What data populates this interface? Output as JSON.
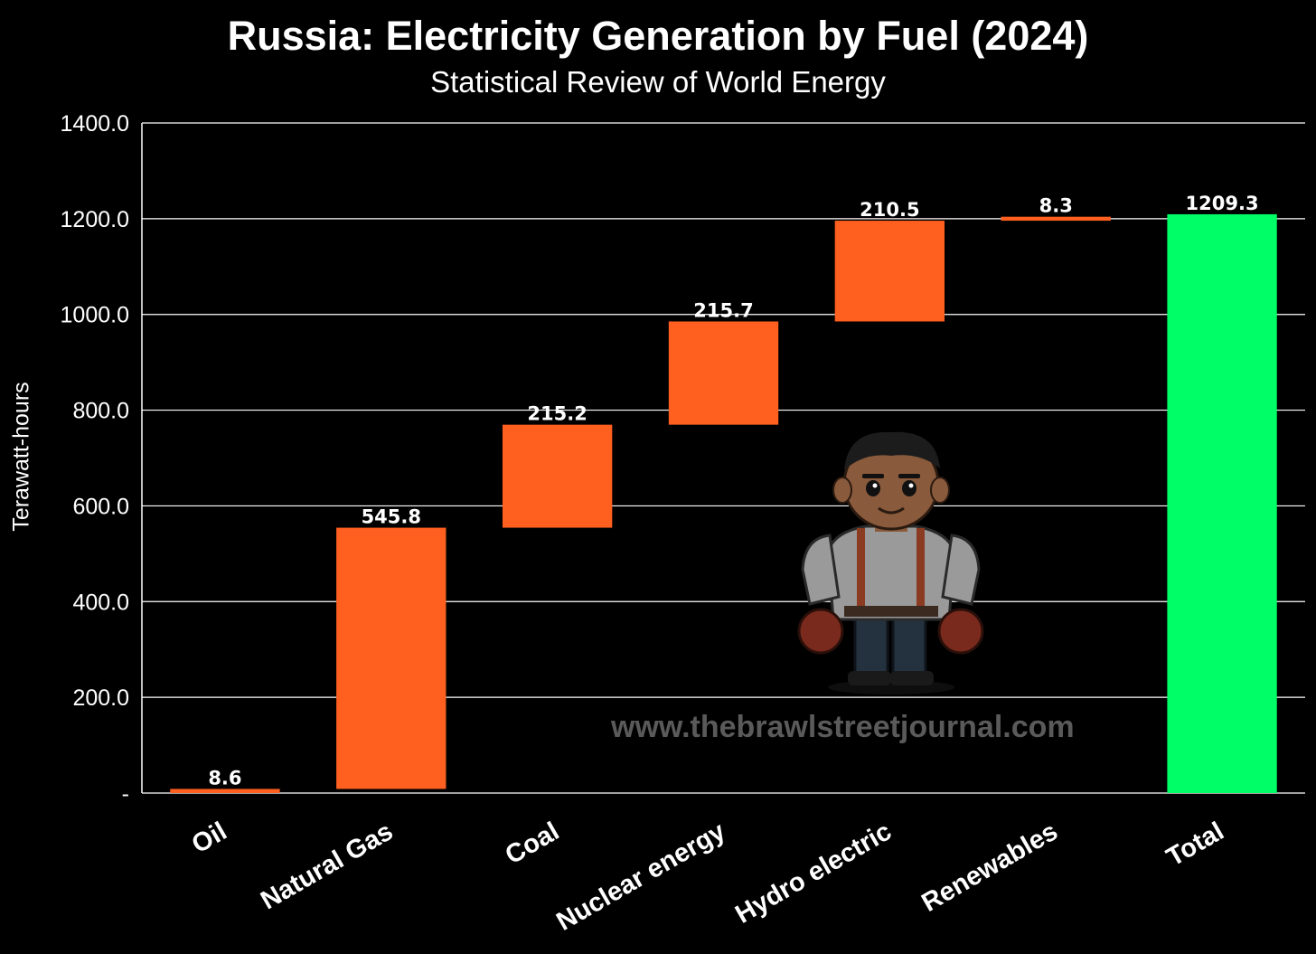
{
  "chart_data": {
    "type": "bar",
    "subtype": "waterfall",
    "title": "Russia: Electricity Generation by Fuel (2024)",
    "subtitle": "Statistical Review of World Energy",
    "xlabel": "",
    "ylabel": "Terawatt-hours",
    "categories": [
      "Oil",
      "Natural Gas",
      "Coal",
      "Nuclear energy",
      "Hydro electric",
      "Renewables",
      "Total"
    ],
    "values": [
      8.6,
      545.8,
      215.2,
      215.7,
      210.5,
      8.3,
      1209.3
    ],
    "data_labels": [
      "8.6",
      "545.8",
      "215.2",
      "215.7",
      "210.5",
      "8.3",
      "1209.3"
    ],
    "is_total": [
      false,
      false,
      false,
      false,
      false,
      false,
      true
    ],
    "ylim": [
      0,
      1400
    ],
    "yticks": [
      0,
      200,
      400,
      600,
      800,
      1000,
      1200,
      1400
    ],
    "ytick_labels": [
      "-",
      "200.0",
      "400.0",
      "600.0",
      "800.0",
      "1000.0",
      "1200.0",
      "1400.0"
    ],
    "grid": true,
    "colors": {
      "increase": "#ff5f1f",
      "total": "#00ff66",
      "background": "#000000",
      "grid": "#ffffff",
      "text": "#ffffff"
    }
  },
  "watermark": "www.thebrawlstreetjournal.com",
  "mascot_icon": "brawler-mascot-icon"
}
